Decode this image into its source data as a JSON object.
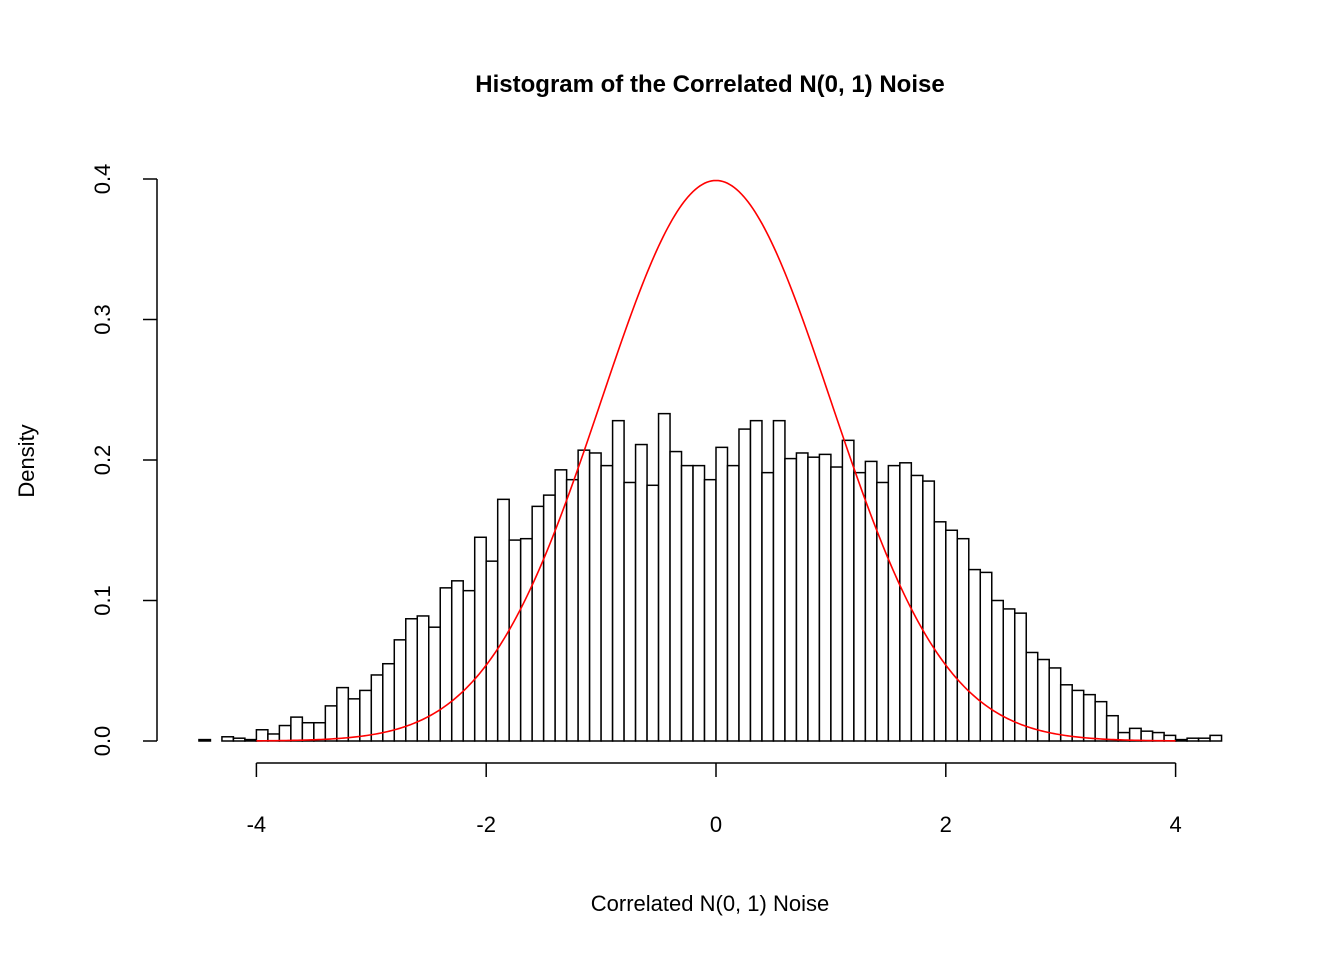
{
  "chart_data": {
    "type": "bar",
    "title": "Histogram of the Correlated N(0, 1) Noise",
    "xlabel": "Correlated N(0, 1) Noise",
    "ylabel": "Density",
    "xlim": [
      -4.5,
      4.4
    ],
    "ylim": [
      0,
      0.4
    ],
    "x_ticks": [
      "-4",
      "-2",
      "0",
      "2",
      "4"
    ],
    "y_ticks": [
      "0.0",
      "0.1",
      "0.2",
      "0.3",
      "0.4"
    ],
    "grid": false,
    "bin_width": 0.1,
    "bin_start": -4.5,
    "values": [
      0.001,
      0,
      0.003,
      0.002,
      0.001,
      0.008,
      0.005,
      0.011,
      0.017,
      0.013,
      0.013,
      0.025,
      0.038,
      0.03,
      0.036,
      0.047,
      0.055,
      0.072,
      0.087,
      0.089,
      0.081,
      0.109,
      0.114,
      0.107,
      0.145,
      0.128,
      0.172,
      0.143,
      0.144,
      0.167,
      0.175,
      0.193,
      0.186,
      0.207,
      0.205,
      0.196,
      0.228,
      0.184,
      0.211,
      0.182,
      0.233,
      0.206,
      0.196,
      0.196,
      0.186,
      0.209,
      0.196,
      0.222,
      0.228,
      0.191,
      0.228,
      0.201,
      0.205,
      0.202,
      0.204,
      0.195,
      0.214,
      0.191,
      0.199,
      0.184,
      0.196,
      0.198,
      0.189,
      0.185,
      0.156,
      0.15,
      0.144,
      0.122,
      0.12,
      0.1,
      0.094,
      0.091,
      0.063,
      0.058,
      0.052,
      0.04,
      0.036,
      0.033,
      0.028,
      0.018,
      0.006,
      0.009,
      0.007,
      0.006,
      0.004,
      0.001,
      0.002,
      0.002,
      0.004
    ],
    "overlay": {
      "type": "line",
      "function": "standard normal density",
      "x_range": [
        -4,
        4
      ],
      "color": "#ff0000"
    },
    "bar_fill": "#ffffff",
    "bar_stroke": "#000000"
  }
}
